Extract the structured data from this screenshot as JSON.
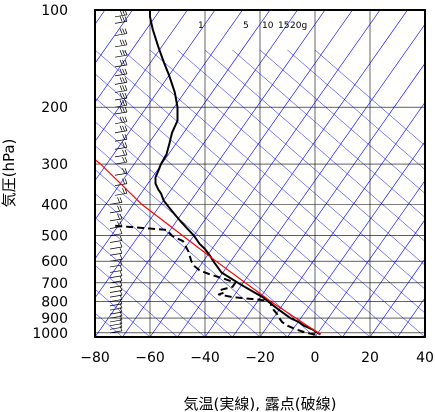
{
  "chart_data": {
    "type": "line",
    "subtype": "skew-T log-p emagram",
    "xlabel": "気温(実線), 露点(破線)",
    "ylabel": "気圧(hPa)",
    "xlim": [
      -80,
      40
    ],
    "ylim": [
      1030,
      100
    ],
    "y_scale": "log",
    "x_ticks": [
      "−80",
      "−60",
      "−40",
      "−20",
      "0",
      "20",
      "40"
    ],
    "x_tick_values": [
      -80,
      -60,
      -40,
      -20,
      0,
      20,
      40
    ],
    "y_ticks": [
      "100",
      "200",
      "300",
      "400",
      "500",
      "600",
      "700",
      "800",
      "900",
      "1000"
    ],
    "y_tick_values": [
      100,
      200,
      300,
      400,
      500,
      600,
      700,
      800,
      900,
      1000
    ],
    "mixing_ratio_labels": [
      "1",
      "5",
      "10",
      "15",
      "20g"
    ],
    "grid": true,
    "colors": {
      "temperature": "#000000",
      "dewpoint": "#000000",
      "parcel": "#ff0000",
      "background_lines": "#0000ff",
      "grid": "#000000"
    },
    "series": [
      {
        "role": "temperature",
        "style": "solid",
        "points": [
          [
            1012,
            2
          ],
          [
            1000,
            1
          ],
          [
            975,
            -1
          ],
          [
            950,
            -4
          ],
          [
            925,
            -6
          ],
          [
            900,
            -9
          ],
          [
            875,
            -11
          ],
          [
            850,
            -13
          ],
          [
            825,
            -15
          ],
          [
            800,
            -17
          ],
          [
            775,
            -19
          ],
          [
            750,
            -22
          ],
          [
            725,
            -25
          ],
          [
            700,
            -28
          ],
          [
            675,
            -31
          ],
          [
            650,
            -34
          ],
          [
            600,
            -37
          ],
          [
            580,
            -38
          ],
          [
            550,
            -40
          ],
          [
            530,
            -42
          ],
          [
            500,
            -44
          ],
          [
            470,
            -47
          ],
          [
            450,
            -49
          ],
          [
            430,
            -51
          ],
          [
            410,
            -53
          ],
          [
            390,
            -55
          ],
          [
            370,
            -56
          ],
          [
            360,
            -57
          ],
          [
            345,
            -58
          ],
          [
            330,
            -58
          ],
          [
            315,
            -57
          ],
          [
            300,
            -56
          ],
          [
            280,
            -54
          ],
          [
            260,
            -53
          ],
          [
            240,
            -52
          ],
          [
            220,
            -50
          ],
          [
            200,
            -50
          ],
          [
            180,
            -51
          ],
          [
            160,
            -53
          ],
          [
            145,
            -55
          ],
          [
            130,
            -57
          ],
          [
            115,
            -59
          ],
          [
            105,
            -60
          ],
          [
            100,
            -60
          ]
        ]
      },
      {
        "role": "dewpoint",
        "style": "dashed",
        "points": [
          [
            1012,
            0
          ],
          [
            1000,
            -3
          ],
          [
            975,
            -7
          ],
          [
            950,
            -10
          ],
          [
            925,
            -12
          ],
          [
            900,
            -13
          ],
          [
            870,
            -14
          ],
          [
            850,
            -15
          ],
          [
            820,
            -16
          ],
          [
            800,
            -16
          ],
          [
            790,
            -20
          ],
          [
            775,
            -30
          ],
          [
            760,
            -35
          ],
          [
            750,
            -33
          ],
          [
            735,
            -34
          ],
          [
            720,
            -30
          ],
          [
            700,
            -29
          ],
          [
            680,
            -33
          ],
          [
            660,
            -38
          ],
          [
            640,
            -42
          ],
          [
            620,
            -44
          ],
          [
            600,
            -45
          ],
          [
            560,
            -46
          ],
          [
            520,
            -48
          ],
          [
            500,
            -52
          ],
          [
            480,
            -54
          ],
          [
            470,
            -67
          ],
          [
            465,
            -74
          ]
        ]
      },
      {
        "role": "parcel",
        "style": "solid",
        "points": [
          [
            1012,
            2
          ],
          [
            800,
            -16
          ],
          [
            600,
            -36
          ],
          [
            400,
            -63
          ],
          [
            300,
            -78
          ],
          [
            266,
            -86
          ]
        ]
      }
    ]
  }
}
